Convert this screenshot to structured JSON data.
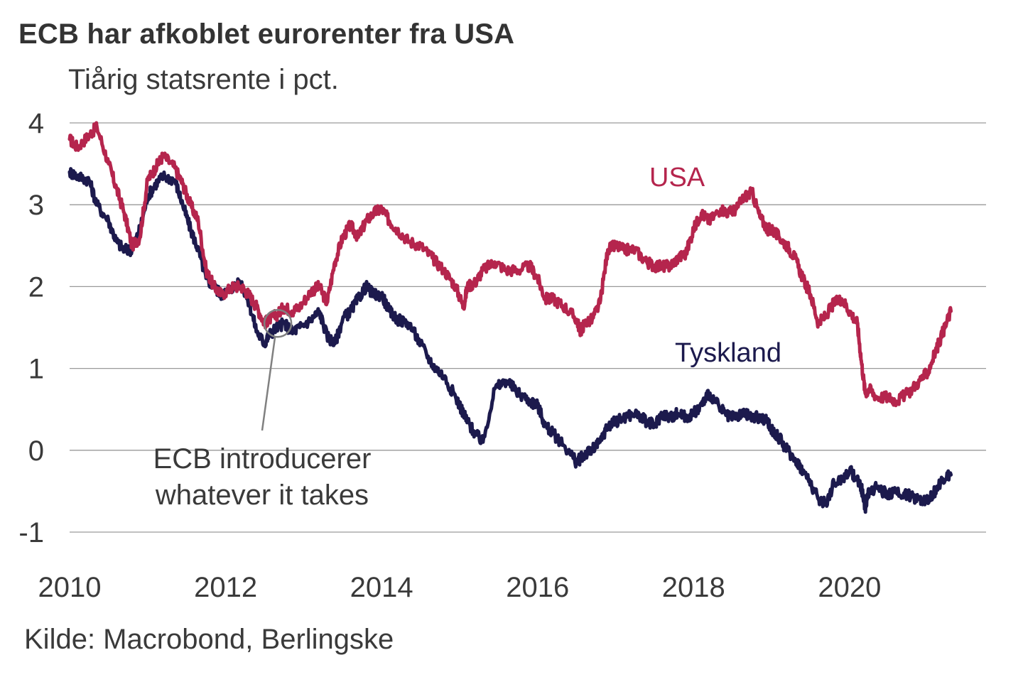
{
  "header": {
    "title": "ECB har afkoblet eurorenter fra USA",
    "subtitle": "Tiårig statsrente i pct."
  },
  "footer": {
    "source": "Kilde: Macrobond, Berlingske"
  },
  "colors": {
    "usa": "#b5254d",
    "germany": "#1c1a4d",
    "grid": "#9a9a9a",
    "annotation": "#808080"
  },
  "chart_data": {
    "type": "line",
    "title": "ECB har afkoblet eurorenter fra USA",
    "subtitle": "Tiårig statsrente i pct.",
    "xlabel": "",
    "ylabel": "",
    "xlim": [
      2010.0,
      2021.75
    ],
    "ylim": [
      -1,
      4
    ],
    "grid": true,
    "x_ticks": [
      2010,
      2012,
      2014,
      2016,
      2018,
      2020
    ],
    "x_tick_labels": [
      "2010",
      "2012",
      "2014",
      "2016",
      "2018",
      "2020"
    ],
    "y_ticks": [
      -1,
      0,
      1,
      2,
      3,
      4
    ],
    "y_tick_labels": [
      "-1",
      "0",
      "1",
      "2",
      "3",
      "4"
    ],
    "series": [
      {
        "name": "USA",
        "label": "USA",
        "x": [
          2010.0,
          2010.1,
          2010.25,
          2010.35,
          2010.5,
          2010.6,
          2010.7,
          2010.8,
          2010.9,
          2011.0,
          2011.1,
          2011.2,
          2011.35,
          2011.45,
          2011.55,
          2011.65,
          2011.75,
          2011.85,
          2011.95,
          2012.1,
          2012.2,
          2012.3,
          2012.4,
          2012.5,
          2012.55,
          2012.65,
          2012.75,
          2012.85,
          2012.95,
          2013.1,
          2013.2,
          2013.3,
          2013.4,
          2013.5,
          2013.6,
          2013.7,
          2013.8,
          2013.9,
          2014.0,
          2014.1,
          2014.2,
          2014.35,
          2014.5,
          2014.65,
          2014.8,
          2014.95,
          2015.05,
          2015.1,
          2015.2,
          2015.3,
          2015.45,
          2015.6,
          2015.75,
          2015.9,
          2016.0,
          2016.1,
          2016.2,
          2016.35,
          2016.5,
          2016.55,
          2016.6,
          2016.7,
          2016.8,
          2016.9,
          2017.0,
          2017.1,
          2017.25,
          2017.4,
          2017.5,
          2017.6,
          2017.7,
          2017.8,
          2017.9,
          2018.0,
          2018.1,
          2018.2,
          2018.35,
          2018.45,
          2018.55,
          2018.65,
          2018.75,
          2018.85,
          2018.95,
          2019.0,
          2019.1,
          2019.2,
          2019.3,
          2019.4,
          2019.5,
          2019.6,
          2019.7,
          2019.8,
          2019.9,
          2020.0,
          2020.1,
          2020.15,
          2020.2,
          2020.25,
          2020.35,
          2020.5,
          2020.6,
          2020.75,
          2020.9,
          2021.0,
          2021.1,
          2021.2,
          2021.3
        ],
        "values": [
          3.8,
          3.7,
          3.85,
          3.95,
          3.5,
          3.2,
          2.9,
          2.5,
          2.6,
          3.3,
          3.45,
          3.6,
          3.45,
          3.25,
          3.0,
          2.8,
          2.2,
          2.0,
          1.9,
          2.0,
          2.0,
          1.9,
          1.75,
          1.55,
          1.6,
          1.65,
          1.75,
          1.7,
          1.75,
          1.95,
          2.0,
          1.8,
          2.3,
          2.6,
          2.75,
          2.6,
          2.8,
          2.9,
          2.95,
          2.8,
          2.7,
          2.55,
          2.5,
          2.35,
          2.2,
          2.0,
          1.75,
          2.0,
          2.05,
          2.2,
          2.3,
          2.2,
          2.2,
          2.25,
          2.1,
          1.85,
          1.85,
          1.75,
          1.6,
          1.45,
          1.55,
          1.6,
          1.8,
          2.45,
          2.5,
          2.45,
          2.45,
          2.3,
          2.25,
          2.25,
          2.25,
          2.35,
          2.4,
          2.7,
          2.9,
          2.8,
          2.95,
          2.9,
          2.95,
          3.1,
          3.15,
          2.85,
          2.7,
          2.7,
          2.6,
          2.5,
          2.35,
          2.1,
          1.9,
          1.55,
          1.65,
          1.8,
          1.85,
          1.7,
          1.55,
          1.1,
          0.7,
          0.75,
          0.65,
          0.65,
          0.6,
          0.7,
          0.85,
          0.95,
          1.2,
          1.45,
          1.7
        ]
      },
      {
        "name": "Tyskland",
        "label": "Tyskland",
        "x": [
          2010.0,
          2010.1,
          2010.25,
          2010.35,
          2010.5,
          2010.6,
          2010.7,
          2010.8,
          2010.9,
          2011.0,
          2011.1,
          2011.2,
          2011.35,
          2011.45,
          2011.55,
          2011.65,
          2011.75,
          2011.85,
          2011.95,
          2012.1,
          2012.2,
          2012.3,
          2012.4,
          2012.5,
          2012.55,
          2012.65,
          2012.75,
          2012.85,
          2012.95,
          2013.1,
          2013.2,
          2013.3,
          2013.4,
          2013.5,
          2013.6,
          2013.7,
          2013.8,
          2013.9,
          2014.0,
          2014.1,
          2014.2,
          2014.35,
          2014.5,
          2014.65,
          2014.8,
          2014.95,
          2015.05,
          2015.1,
          2015.2,
          2015.3,
          2015.45,
          2015.6,
          2015.75,
          2015.9,
          2016.0,
          2016.1,
          2016.2,
          2016.35,
          2016.5,
          2016.55,
          2016.6,
          2016.7,
          2016.8,
          2016.9,
          2017.0,
          2017.1,
          2017.25,
          2017.4,
          2017.5,
          2017.6,
          2017.7,
          2017.8,
          2017.9,
          2018.0,
          2018.1,
          2018.2,
          2018.35,
          2018.45,
          2018.55,
          2018.65,
          2018.75,
          2018.85,
          2018.95,
          2019.0,
          2019.1,
          2019.2,
          2019.3,
          2019.4,
          2019.5,
          2019.6,
          2019.7,
          2019.8,
          2019.9,
          2020.0,
          2020.1,
          2020.15,
          2020.2,
          2020.25,
          2020.35,
          2020.5,
          2020.6,
          2020.75,
          2020.9,
          2021.0,
          2021.1,
          2021.2,
          2021.3
        ],
        "values": [
          3.4,
          3.35,
          3.3,
          3.0,
          2.8,
          2.55,
          2.45,
          2.45,
          2.7,
          3.1,
          3.25,
          3.35,
          3.3,
          3.0,
          2.7,
          2.45,
          2.1,
          2.0,
          1.9,
          2.0,
          2.05,
          1.8,
          1.45,
          1.3,
          1.4,
          1.5,
          1.55,
          1.45,
          1.5,
          1.6,
          1.7,
          1.4,
          1.3,
          1.6,
          1.7,
          1.85,
          2.0,
          1.9,
          1.9,
          1.7,
          1.6,
          1.55,
          1.3,
          1.05,
          0.9,
          0.65,
          0.45,
          0.35,
          0.2,
          0.1,
          0.75,
          0.85,
          0.7,
          0.6,
          0.55,
          0.3,
          0.2,
          0.05,
          -0.15,
          -0.1,
          -0.05,
          0.0,
          0.1,
          0.3,
          0.35,
          0.4,
          0.45,
          0.35,
          0.3,
          0.45,
          0.4,
          0.45,
          0.4,
          0.45,
          0.55,
          0.7,
          0.5,
          0.4,
          0.4,
          0.45,
          0.4,
          0.4,
          0.35,
          0.25,
          0.15,
          0.0,
          -0.1,
          -0.25,
          -0.4,
          -0.6,
          -0.65,
          -0.4,
          -0.35,
          -0.25,
          -0.35,
          -0.45,
          -0.7,
          -0.5,
          -0.45,
          -0.55,
          -0.5,
          -0.55,
          -0.6,
          -0.6,
          -0.5,
          -0.35,
          -0.3
        ]
      }
    ],
    "annotations": [
      {
        "text_line1": "ECB introducerer",
        "text_line2": "whatever it takes",
        "x": 2012.67,
        "y": 1.55
      }
    ]
  }
}
